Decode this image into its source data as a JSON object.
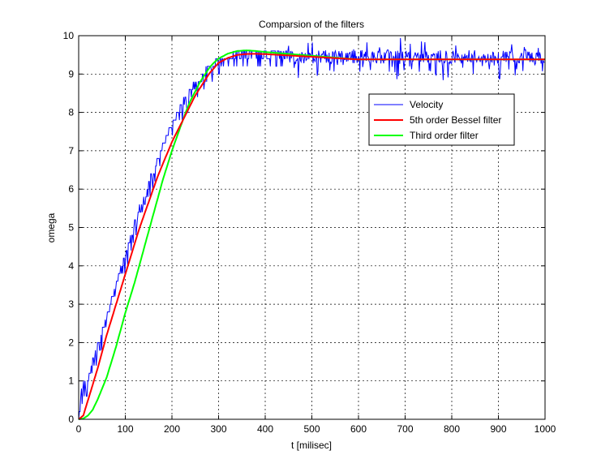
{
  "chart_data": {
    "type": "line",
    "title": "Comparsion of the filters",
    "xlabel": "t [milisec]",
    "ylabel": "omega",
    "xlim": [
      0,
      1000
    ],
    "ylim": [
      0,
      10
    ],
    "xticks": [
      "0",
      "100",
      "200",
      "300",
      "400",
      "500",
      "600",
      "700",
      "800",
      "900",
      "1000"
    ],
    "yticks": [
      "0",
      "1",
      "2",
      "3",
      "4",
      "5",
      "6",
      "7",
      "8",
      "9",
      "10"
    ],
    "grid": true,
    "legend_position": "top-right",
    "series": [
      {
        "name": "Velocity",
        "color": "#0000ff",
        "style": "stepped-noisy",
        "x": [
          0,
          5,
          10,
          20,
          30,
          40,
          50,
          60,
          70,
          80,
          90,
          100,
          110,
          120,
          130,
          140,
          150,
          160,
          170,
          180,
          190,
          200,
          210,
          220,
          230,
          240,
          250,
          260,
          270,
          280,
          290,
          300,
          310,
          320,
          330,
          340,
          350,
          360,
          370,
          380,
          390,
          400,
          410,
          420,
          430,
          440,
          450,
          460,
          470,
          480,
          490,
          500,
          550,
          600,
          650,
          700,
          750,
          800,
          850,
          900,
          950,
          1000
        ],
        "y": [
          0.0,
          0.8,
          1.0,
          1.2,
          1.6,
          2.0,
          2.4,
          2.8,
          3.2,
          3.6,
          4.0,
          4.4,
          4.8,
          5.2,
          5.6,
          5.9,
          6.3,
          6.6,
          6.9,
          7.2,
          7.5,
          7.8,
          8.0,
          8.3,
          8.5,
          8.7,
          8.9,
          9.0,
          9.2,
          9.3,
          9.4,
          9.5,
          9.55,
          9.6,
          9.6,
          9.65,
          9.65,
          9.7,
          9.7,
          9.7,
          9.7,
          9.7,
          9.7,
          9.7,
          9.75,
          9.75,
          9.75,
          9.75,
          9.75,
          9.75,
          9.75,
          9.75,
          9.75,
          9.75,
          9.75,
          9.75,
          9.75,
          9.75,
          9.75,
          9.75,
          9.75,
          9.75
        ]
      },
      {
        "name": "5th order Bessel filter",
        "color": "#ff0000",
        "x": [
          0,
          10,
          20,
          30,
          40,
          50,
          60,
          70,
          80,
          90,
          100,
          110,
          120,
          130,
          140,
          150,
          160,
          170,
          180,
          190,
          200,
          210,
          220,
          230,
          240,
          250,
          260,
          270,
          280,
          290,
          300,
          320,
          340,
          360,
          380,
          400,
          420,
          440,
          460,
          480,
          500,
          550,
          600,
          650,
          700,
          750,
          800,
          850,
          900,
          950,
          1000
        ],
        "y": [
          0.0,
          0.1,
          0.5,
          0.9,
          1.3,
          1.75,
          2.2,
          2.6,
          3.0,
          3.4,
          3.8,
          4.2,
          4.6,
          5.0,
          5.35,
          5.7,
          6.05,
          6.4,
          6.7,
          7.0,
          7.3,
          7.55,
          7.8,
          8.05,
          8.3,
          8.55,
          8.75,
          8.95,
          9.15,
          9.3,
          9.45,
          9.6,
          9.7,
          9.75,
          9.78,
          9.8,
          9.8,
          9.8,
          9.8,
          9.8,
          9.8,
          9.8,
          9.8,
          9.8,
          9.8,
          9.8,
          9.8,
          9.8,
          9.8,
          9.8,
          9.8
        ]
      },
      {
        "name": "Third order filter",
        "color": "#00ff00",
        "x": [
          0,
          10,
          20,
          30,
          40,
          50,
          60,
          70,
          80,
          90,
          100,
          110,
          120,
          130,
          140,
          150,
          160,
          170,
          180,
          190,
          200,
          210,
          220,
          230,
          240,
          250,
          260,
          270,
          280,
          290,
          300,
          320,
          340,
          360,
          380,
          400,
          420,
          440,
          460,
          480,
          500,
          550,
          600,
          650,
          700,
          750,
          800,
          850,
          900,
          950,
          1000
        ],
        "y": [
          0.0,
          0.02,
          0.1,
          0.25,
          0.5,
          0.8,
          1.1,
          1.5,
          1.9,
          2.35,
          2.8,
          3.2,
          3.6,
          4.05,
          4.5,
          4.95,
          5.4,
          5.85,
          6.3,
          6.7,
          7.1,
          7.45,
          7.8,
          8.15,
          8.45,
          8.7,
          8.95,
          9.15,
          9.35,
          9.5,
          9.62,
          9.78,
          9.88,
          9.93,
          9.95,
          9.96,
          9.96,
          9.96,
          9.96,
          9.96,
          9.96,
          9.96,
          9.96,
          9.96,
          9.96,
          9.96,
          9.96,
          9.96,
          9.96,
          9.96,
          9.96
        ]
      }
    ]
  }
}
